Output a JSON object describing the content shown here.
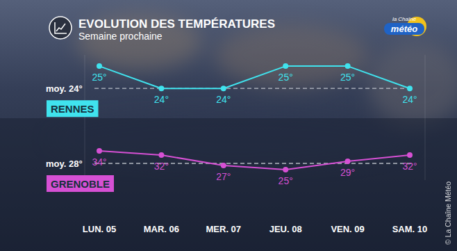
{
  "header": {
    "title": "EVOLUTION DES TEMPÉRATURES",
    "subtitle": "Semaine prochaine",
    "logo": [
      "la Chaîne",
      "météo"
    ],
    "copyright": "© La Chaîne Météo"
  },
  "chart_data": {
    "type": "line",
    "categories": [
      "LUN. 05",
      "MAR. 06",
      "MER. 07",
      "JEU. 08",
      "VEN. 09",
      "SAM. 10"
    ],
    "series": [
      {
        "name": "RENNES",
        "color": "#40e3ee",
        "marker": "circle",
        "values": [
          25,
          24,
          24,
          25,
          25,
          24
        ],
        "value_labels": [
          "25°",
          "24°",
          "24°",
          "25°",
          "25°",
          "24°"
        ]
      },
      {
        "name": "GRENOBLE",
        "color": "#d650d4",
        "marker": "circle",
        "axis": "y2",
        "values": [
          34,
          32,
          27,
          25,
          29,
          32
        ],
        "value_labels": [
          "34°",
          "32°",
          "27°",
          "25°",
          "29°",
          "32°"
        ]
      }
    ],
    "ylim": [
      19.9,
      25.5
    ],
    "yticks": [
      {
        "value": 24,
        "label": "moy. 24°"
      }
    ],
    "y2lim": [
      20,
      80
    ],
    "y2ticks": [
      {
        "value": 28,
        "label": "moy. 28°"
      }
    ],
    "grid": true,
    "data_labels": true
  }
}
